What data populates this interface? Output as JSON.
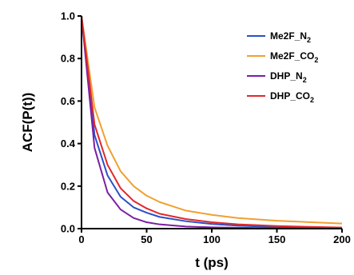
{
  "chart_data": {
    "type": "line",
    "xlabel": "t (ps)",
    "ylabel": "ACF(P(t))",
    "xlim": [
      0,
      200
    ],
    "ylim": [
      0.0,
      1.0
    ],
    "xticks": [
      "0",
      "50",
      "100",
      "150",
      "200"
    ],
    "yticks": [
      "0.0",
      "0.2",
      "0.4",
      "0.6",
      "0.8",
      "1.0"
    ],
    "grid": false,
    "legend_position": "top-right",
    "series": [
      {
        "name": "Me2F_N2",
        "name_base": "Me2F_N",
        "name_sub": "2",
        "color": "#2b4fc7",
        "x": [
          0,
          10,
          20,
          30,
          40,
          50,
          60,
          80,
          100,
          120,
          150,
          200
        ],
        "y": [
          1.0,
          0.44,
          0.25,
          0.15,
          0.1,
          0.075,
          0.055,
          0.035,
          0.022,
          0.014,
          0.007,
          0.002
        ]
      },
      {
        "name": "Me2F_CO2",
        "name_base": "Me2F_CO",
        "name_sub": "2",
        "color": "#f0a030",
        "x": [
          0,
          10,
          20,
          30,
          40,
          50,
          60,
          80,
          100,
          120,
          150,
          200
        ],
        "y": [
          1.0,
          0.57,
          0.39,
          0.27,
          0.2,
          0.155,
          0.125,
          0.085,
          0.065,
          0.05,
          0.037,
          0.024
        ]
      },
      {
        "name": "DHP_N2",
        "name_base": "DHP_N",
        "name_sub": "2",
        "color": "#7b1fa2",
        "x": [
          0,
          10,
          20,
          30,
          40,
          50,
          60,
          80,
          100,
          120,
          150,
          200
        ],
        "y": [
          1.0,
          0.38,
          0.17,
          0.09,
          0.05,
          0.03,
          0.02,
          0.01,
          0.006,
          0.004,
          0.002,
          0.001
        ]
      },
      {
        "name": "DHP_CO2",
        "name_base": "DHP_CO",
        "name_sub": "2",
        "color": "#e0282c",
        "x": [
          0,
          10,
          20,
          30,
          40,
          50,
          60,
          80,
          100,
          120,
          150,
          200
        ],
        "y": [
          1.0,
          0.49,
          0.3,
          0.19,
          0.13,
          0.095,
          0.07,
          0.045,
          0.03,
          0.02,
          0.012,
          0.005
        ]
      }
    ]
  }
}
